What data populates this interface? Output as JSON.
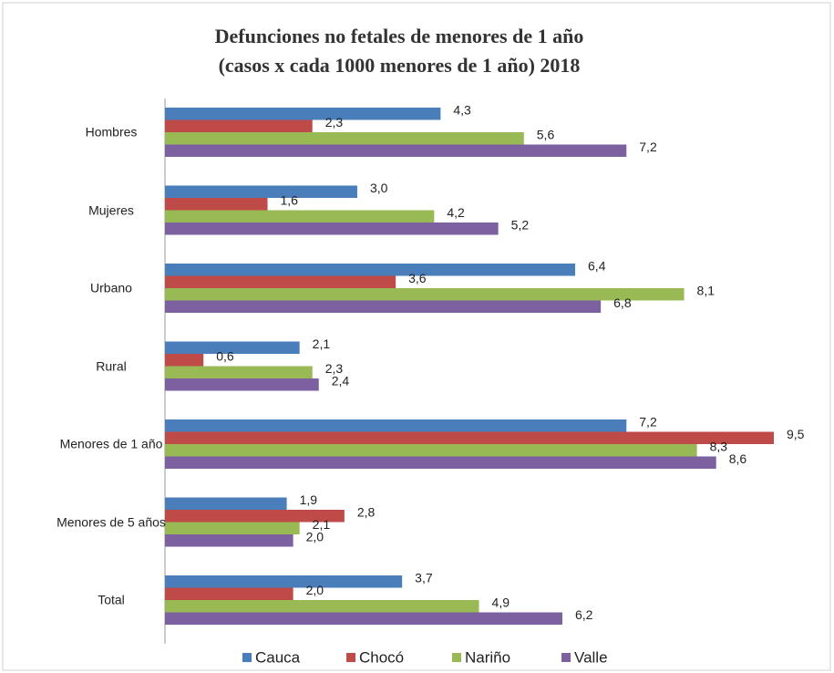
{
  "chart_data": {
    "type": "bar",
    "orientation": "horizontal",
    "title": "Defunciones no fetales de menores de 1 año",
    "subtitle": "(casos x cada  1000 menores de 1 año)  2018",
    "categories": [
      "Hombres",
      "Mujeres",
      "Urbano",
      "Rural",
      "Menores de 1 año",
      "Menores de 5 años",
      "Total"
    ],
    "series": [
      {
        "name": "Cauca",
        "color": "#4a7ebb",
        "values": [
          4.3,
          3.0,
          6.4,
          2.1,
          7.2,
          1.9,
          3.7
        ],
        "value_labels": [
          "4,3",
          "3,0",
          "6,4",
          "2,1",
          "7,2",
          "1,9",
          "3,7"
        ]
      },
      {
        "name": "Chocó",
        "color": "#be4b48",
        "values": [
          2.3,
          1.6,
          3.6,
          0.6,
          9.5,
          2.8,
          2.0
        ],
        "value_labels": [
          "2,3",
          "1,6",
          "3,6",
          "0,6",
          "9,5",
          "2,8",
          "2,0"
        ]
      },
      {
        "name": "Nariño",
        "color": "#98b954",
        "values": [
          5.6,
          4.2,
          8.1,
          2.3,
          8.3,
          2.1,
          4.9
        ],
        "value_labels": [
          "5,6",
          "4,2",
          "8,1",
          "2,3",
          "8,3",
          "2,1",
          "4,9"
        ]
      },
      {
        "name": "Valle",
        "color": "#7d60a0",
        "values": [
          7.2,
          5.2,
          6.8,
          2.4,
          8.6,
          2.0,
          6.2
        ],
        "value_labels": [
          "7,2",
          "5,2",
          "6,8",
          "2,4",
          "8,6",
          "2,0",
          "6,2"
        ]
      }
    ],
    "legend": "bottom"
  }
}
